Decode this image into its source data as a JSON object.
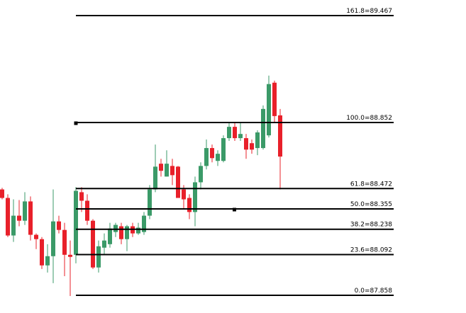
{
  "chart_data": {
    "type": "candlestick",
    "up_color": "#3b9a68",
    "down_color": "#e8202a",
    "level_color": "#000000",
    "levels": [
      {
        "value": 89.467,
        "label": "161.8=89.467"
      },
      {
        "value": 88.852,
        "label": "100.0=88.852"
      },
      {
        "value": 88.472,
        "label": "61.8=88.472"
      },
      {
        "value": 88.355,
        "label": "50.0=88.355"
      },
      {
        "value": 88.238,
        "label": "38.2=88.238"
      },
      {
        "value": 88.092,
        "label": "23.6=88.092"
      },
      {
        "value": 87.858,
        "label": "0.0=87.858"
      }
    ],
    "open": [
      88.467,
      88.418,
      88.202,
      88.316,
      88.287,
      88.398,
      88.206,
      88.181,
      88.03,
      88.083,
      88.283,
      88.234,
      88.091,
      88.091,
      88.451,
      88.402,
      88.287,
      88.018,
      88.132,
      88.152,
      88.222,
      88.255,
      88.181,
      88.255,
      88.214,
      88.222,
      88.316,
      88.467,
      88.615,
      88.541,
      88.602,
      88.598,
      88.467,
      88.418,
      88.337,
      88.508,
      88.602,
      88.705,
      88.631,
      88.631,
      88.762,
      88.827,
      88.762,
      88.762,
      88.733,
      88.705,
      88.705,
      88.778,
      89.081,
      88.893
    ],
    "high": [
      88.476,
      88.439,
      88.41,
      88.406,
      88.451,
      88.427,
      88.214,
      88.193,
      88.152,
      88.467,
      88.316,
      88.275,
      88.173,
      88.48,
      88.48,
      88.439,
      88.296,
      88.173,
      88.214,
      88.275,
      88.275,
      88.275,
      88.263,
      88.275,
      88.275,
      88.337,
      88.492,
      88.725,
      88.643,
      88.692,
      88.643,
      88.602,
      88.492,
      88.439,
      88.541,
      88.623,
      88.754,
      88.725,
      88.692,
      88.778,
      88.848,
      88.848,
      88.848,
      88.786,
      88.754,
      88.807,
      88.95,
      89.122,
      89.093,
      88.93
    ],
    "low": [
      88.41,
      88.193,
      88.165,
      88.255,
      88.263,
      88.173,
      88.124,
      88.009,
      87.989,
      87.928,
      88.214,
      87.968,
      87.854,
      88.042,
      88.337,
      88.263,
      88.009,
      87.989,
      88.091,
      88.132,
      88.193,
      88.152,
      88.112,
      88.193,
      88.206,
      88.206,
      88.296,
      88.451,
      88.541,
      88.541,
      88.492,
      88.418,
      88.353,
      88.296,
      88.255,
      88.467,
      88.582,
      88.623,
      88.602,
      88.623,
      88.746,
      88.746,
      88.746,
      88.643,
      88.672,
      88.664,
      88.696,
      88.766,
      88.848,
      88.467
    ],
    "close": [
      88.418,
      88.202,
      88.316,
      88.287,
      88.398,
      88.206,
      88.181,
      88.03,
      88.083,
      88.283,
      88.234,
      88.091,
      88.079,
      88.459,
      88.402,
      88.287,
      88.018,
      88.14,
      88.173,
      88.242,
      88.263,
      88.181,
      88.255,
      88.214,
      88.247,
      88.316,
      88.467,
      88.598,
      88.574,
      88.615,
      88.549,
      88.418,
      88.41,
      88.337,
      88.508,
      88.602,
      88.705,
      88.647,
      88.672,
      88.762,
      88.827,
      88.762,
      88.786,
      88.696,
      88.696,
      88.795,
      88.93,
      89.073,
      88.889,
      88.656
    ]
  }
}
